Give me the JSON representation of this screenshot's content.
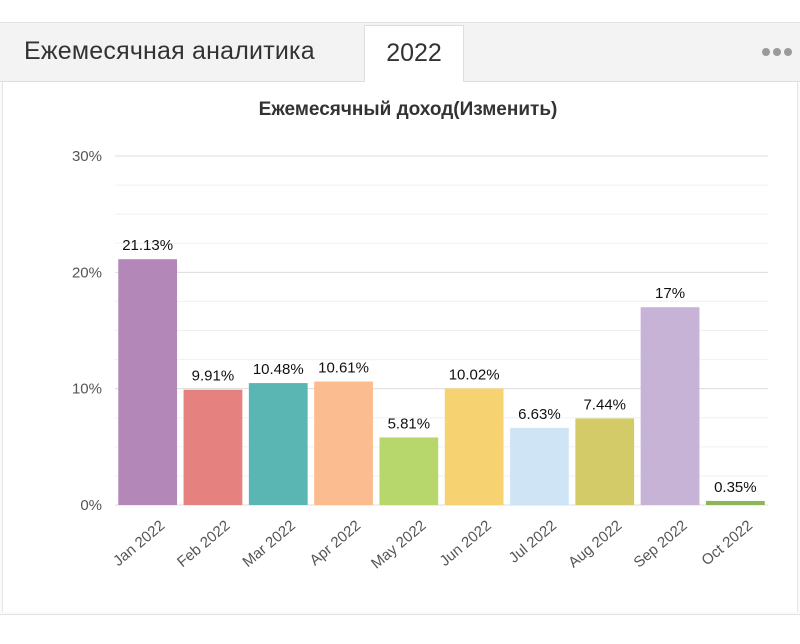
{
  "header": {
    "title": "Ежемесячная аналитика",
    "active_tab": "2022",
    "more_icon": "more-horizontal-icon"
  },
  "chart_data": {
    "type": "bar",
    "title": "Ежемесячный доход(Изменить)",
    "xlabel": "",
    "ylabel": "",
    "ylim": [
      0,
      30
    ],
    "yticks": [
      "0%",
      "10%",
      "20%",
      "30%"
    ],
    "categories": [
      "Jan 2022",
      "Feb 2022",
      "Mar 2022",
      "Apr 2022",
      "May 2022",
      "Jun 2022",
      "Jul 2022",
      "Aug 2022",
      "Sep 2022",
      "Oct 2022"
    ],
    "values": [
      21.13,
      9.91,
      10.48,
      10.61,
      5.81,
      10.02,
      6.63,
      7.44,
      17,
      0.35
    ],
    "labels": [
      "21.13%",
      "9.91%",
      "10.48%",
      "10.61%",
      "5.81%",
      "10.02%",
      "6.63%",
      "7.44%",
      "17%",
      "0.35%"
    ],
    "colors": [
      "#b388b8",
      "#e5817f",
      "#5ab6b3",
      "#fbbd8f",
      "#b7d76c",
      "#f6d270",
      "#cfe5f6",
      "#d2cb67",
      "#c6b3d6",
      "#8fb55a"
    ],
    "grid": true
  }
}
